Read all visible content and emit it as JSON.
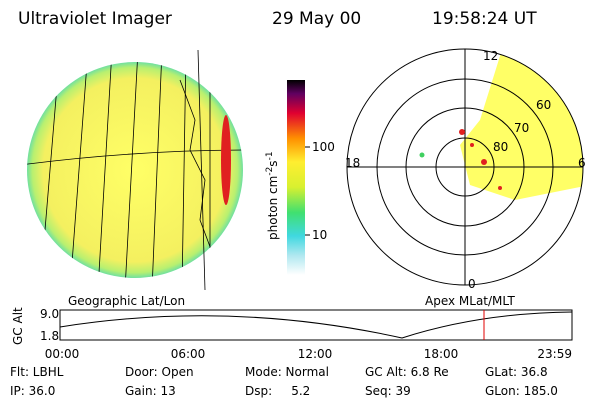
{
  "header": {
    "instrument": "Ultraviolet Imager",
    "date": "29 May 00",
    "time": "19:58:24 UT"
  },
  "colorbar": {
    "unit": "photon cm",
    "exp1": "-2",
    "unit2": "s",
    "exp2": "-1",
    "ticks": [
      "100",
      "10"
    ]
  },
  "polar_plot": {
    "mlt_labels": [
      "12",
      "18",
      "6",
      "0"
    ],
    "mlat_labels": [
      "60",
      "70",
      "80"
    ]
  },
  "timeline": {
    "left_title": "Geographic Lat/Lon",
    "right_title": "Apex MLat/MLT",
    "y_label": "GC Alt",
    "y_ticks": [
      "9.0",
      "1.8"
    ],
    "x_ticks": [
      "00:00",
      "06:00",
      "12:00",
      "18:00",
      "23:59"
    ]
  },
  "footer": {
    "rows": [
      [
        "Flt: LBHL",
        "Door: Open",
        "Mode: Normal",
        "GC Alt: 6.8 Re",
        "GLat: 36.8"
      ],
      [
        "IP: 36.0",
        "Gain: 13",
        "Dsp:     5.2",
        "Seq: 39",
        "GLon: 185.0"
      ]
    ]
  }
}
